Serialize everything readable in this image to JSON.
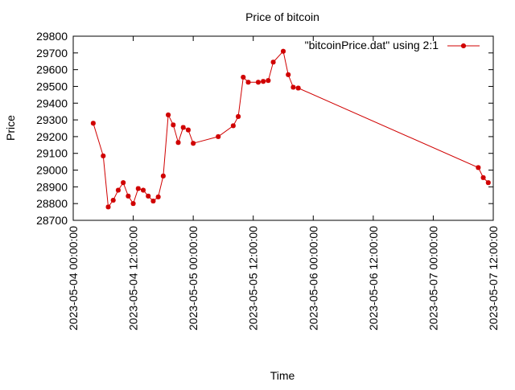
{
  "chart_data": {
    "type": "line",
    "title": "Price of bitcoin",
    "xlabel": "Time",
    "ylabel": "Price",
    "ylim": [
      28700,
      29800
    ],
    "y_ticks": [
      28700,
      28800,
      28900,
      29000,
      29100,
      29200,
      29300,
      29400,
      29500,
      29600,
      29700,
      29800
    ],
    "x_range": [
      "2023-05-04 00:00:00",
      "2023-05-07 12:00:00"
    ],
    "x_ticks": [
      "2023-05-04 00:00:00",
      "2023-05-04 12:00:00",
      "2023-05-05 00:00:00",
      "2023-05-05 12:00:00",
      "2023-05-06 00:00:00",
      "2023-05-06 12:00:00",
      "2023-05-07 00:00:00",
      "2023-05-07 12:00:00"
    ],
    "grid": false,
    "legend_position": "top-right",
    "series": [
      {
        "name": "\"bitcoinPrice.dat\" using 2:1",
        "color": "#d00000",
        "marker": "plus-star",
        "x": [
          "2023-05-04 04:00:00",
          "2023-05-04 06:00:00",
          "2023-05-04 07:00:00",
          "2023-05-04 08:00:00",
          "2023-05-04 09:00:00",
          "2023-05-04 10:00:00",
          "2023-05-04 11:00:00",
          "2023-05-04 12:00:00",
          "2023-05-04 13:00:00",
          "2023-05-04 14:00:00",
          "2023-05-04 15:00:00",
          "2023-05-04 16:00:00",
          "2023-05-04 17:00:00",
          "2023-05-04 18:00:00",
          "2023-05-04 19:00:00",
          "2023-05-04 20:00:00",
          "2023-05-04 21:00:00",
          "2023-05-04 22:00:00",
          "2023-05-04 23:00:00",
          "2023-05-05 00:00:00",
          "2023-05-05 05:00:00",
          "2023-05-05 08:00:00",
          "2023-05-05 09:00:00",
          "2023-05-05 10:00:00",
          "2023-05-05 11:00:00",
          "2023-05-05 13:00:00",
          "2023-05-05 14:00:00",
          "2023-05-05 15:00:00",
          "2023-05-05 16:00:00",
          "2023-05-05 18:00:00",
          "2023-05-05 19:00:00",
          "2023-05-05 20:00:00",
          "2023-05-05 21:00:00",
          "2023-05-07 09:00:00",
          "2023-05-07 10:00:00",
          "2023-05-07 11:00:00"
        ],
        "y": [
          29280,
          29085,
          28780,
          28820,
          28880,
          28925,
          28845,
          28800,
          28890,
          28880,
          28845,
          28815,
          28840,
          28965,
          29330,
          29270,
          29165,
          29255,
          29240,
          29160,
          29200,
          29265,
          29320,
          29555,
          29525,
          29525,
          29530,
          29535,
          29645,
          29710,
          29570,
          29495,
          29490,
          29015,
          28955,
          28925
        ]
      }
    ]
  }
}
